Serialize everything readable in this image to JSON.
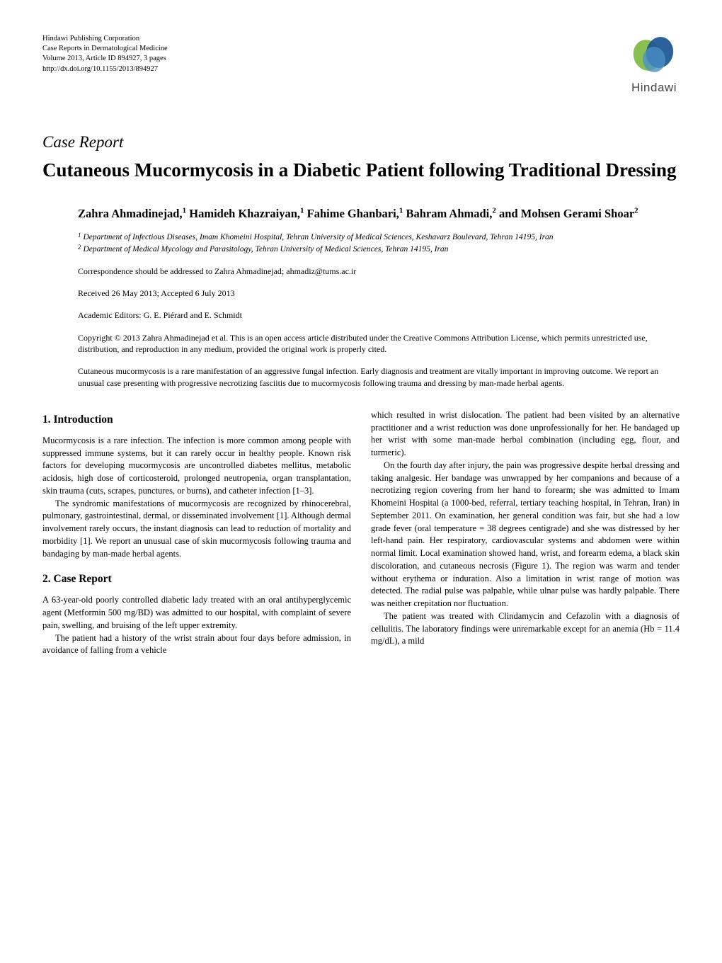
{
  "colors": {
    "text": "#000000",
    "background": "#ffffff",
    "logo_green": "#7fba42",
    "logo_blue_dark": "#1a5490",
    "logo_blue_light": "#4a90c8",
    "logo_brand_text": "#444444"
  },
  "typography": {
    "body_font": "Minion Pro, Times New Roman, serif",
    "body_size": 12.5,
    "title_size": 27,
    "section_heading_size": 15.5,
    "authors_size": 16.5,
    "pub_info_size": 10.5
  },
  "publisher": {
    "line1": "Hindawi Publishing Corporation",
    "line2": "Case Reports in Dermatological Medicine",
    "line3": "Volume 2013, Article ID 894927, 3 pages",
    "line4": "http://dx.doi.org/10.1155/2013/894927",
    "brand": "Hindawi"
  },
  "article": {
    "type_label": "Case Report",
    "title": "Cutaneous Mucormycosis in a Diabetic Patient following Traditional Dressing",
    "authors_html": "Zahra Ahmadinejad,<sup>1</sup> Hamideh Khazraiyan,<sup>1</sup> Fahime Ghanbari,<sup>1</sup> Bahram Ahmadi,<sup>2</sup> and Mohsen Gerami Shoar<sup>2</sup>",
    "affiliations": [
      {
        "num": "1",
        "text": "Department of Infectious Diseases, Imam Khomeini Hospital, Tehran University of Medical Sciences, Keshavarz Boulevard, Tehran 14195, Iran"
      },
      {
        "num": "2",
        "text": "Department of Medical Mycology and Parasitology, Tehran University of Medical Sciences, Tehran 14195, Iran"
      }
    ],
    "correspondence": "Correspondence should be addressed to Zahra Ahmadinejad; ahmadiz@tums.ac.ir",
    "dates": "Received 26 May 2013; Accepted 6 July 2013",
    "editors": "Academic Editors: G. E. Piérard and E. Schmidt",
    "copyright": "Copyright © 2013 Zahra Ahmadinejad et al. This is an open access article distributed under the Creative Commons Attribution License, which permits unrestricted use, distribution, and reproduction in any medium, provided the original work is properly cited.",
    "abstract": "Cutaneous mucormycosis is a rare manifestation of an aggressive fungal infection. Early diagnosis and treatment are vitally important in improving outcome. We report an unusual case presenting with progressive necrotizing fasciitis due to mucormycosis following trauma and dressing by man-made herbal agents."
  },
  "sections": {
    "intro_heading": "1. Introduction",
    "case_heading": "2. Case Report",
    "intro_p1": "Mucormycosis is a rare infection. The infection is more common among people with suppressed immune systems, but it can rarely occur in healthy people. Known risk factors for developing mucormycosis are uncontrolled diabetes mellitus, metabolic acidosis, high dose of corticosteroid, prolonged neutropenia, organ transplantation, skin trauma (cuts, scrapes, punctures, or burns), and catheter infection [1–3].",
    "intro_p2": "The syndromic manifestations of mucormycosis are recognized by rhinocerebral, pulmonary, gastrointestinal, dermal, or disseminated involvement [1]. Although dermal involvement rarely occurs, the instant diagnosis can lead to reduction of mortality and morbidity [1]. We report an unusual case of skin mucormycosis following trauma and bandaging by man-made herbal agents.",
    "case_p1": "A 63-year-old poorly controlled diabetic lady treated with an oral antihyperglycemic agent (Metformin 500 mg/BD) was admitted to our hospital, with complaint of severe pain, swelling, and bruising of the left upper extremity.",
    "case_p2": "The patient had a history of the wrist strain about four days before admission, in avoidance of falling from a vehicle",
    "col2_p1": "which resulted in wrist dislocation. The patient had been visited by an alternative practitioner and a wrist reduction was done unprofessionally for her. He bandaged up her wrist with some man-made herbal combination (including egg, flour, and turmeric).",
    "col2_p2": "On the fourth day after injury, the pain was progressive despite herbal dressing and taking analgesic. Her bandage was unwrapped by her companions and because of a necrotizing region covering from her hand to forearm; she was admitted to Imam Khomeini Hospital (a 1000-bed, referral, tertiary teaching hospital, in Tehran, Iran) in September 2011. On examination, her general condition was fair, but she had a low grade fever (oral temperature = 38 degrees centigrade) and she was distressed by her left-hand pain. Her respiratory, cardiovascular systems and abdomen were within normal limit. Local examination showed hand, wrist, and forearm edema, a black skin discoloration, and cutaneous necrosis (Figure 1). The region was warm and tender without erythema or induration. Also a limitation in wrist range of motion was detected. The radial pulse was palpable, while ulnar pulse was hardly palpable. There was neither crepitation nor fluctuation.",
    "col2_p3": "The patient was treated with Clindamycin and Cefazolin with a diagnosis of cellulitis. The laboratory findings were unremarkable except for an anemia (Hb = 11.4 mg/dL), a mild"
  }
}
